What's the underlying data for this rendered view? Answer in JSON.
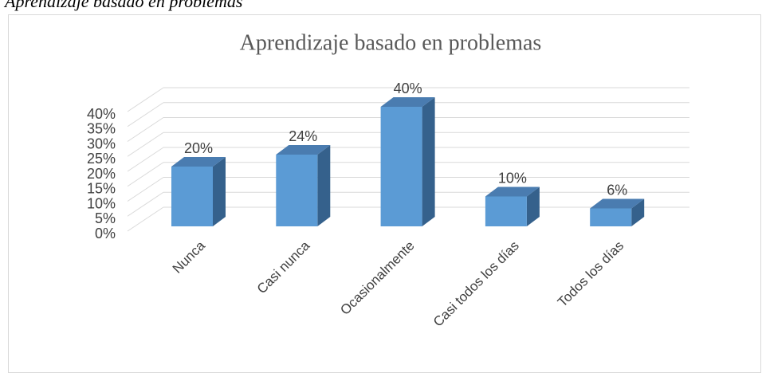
{
  "caption": "Aprendizaje basado en problemas",
  "chart_data": {
    "type": "bar3d",
    "title": "Aprendizaje basado en problemas",
    "categories": [
      "Nunca",
      "Casi nunca",
      "Ocasionalmente",
      "Casi todos los días",
      "Todos los días"
    ],
    "values": [
      20,
      24,
      40,
      10,
      6
    ],
    "value_labels": [
      "20%",
      "24%",
      "40%",
      "10%",
      "6%"
    ],
    "color": "#5b9bd5",
    "ylim": [
      0,
      40
    ],
    "yticks": [
      {
        "value": 0,
        "label": "0%"
      },
      {
        "value": 5,
        "label": "5%"
      },
      {
        "value": 10,
        "label": "10%"
      },
      {
        "value": 15,
        "label": "15%"
      },
      {
        "value": 20,
        "label": "20%"
      },
      {
        "value": 25,
        "label": "25%"
      },
      {
        "value": 30,
        "label": "30%"
      },
      {
        "value": 35,
        "label": "35%"
      },
      {
        "value": 40,
        "label": "40%"
      }
    ],
    "grid": true
  }
}
